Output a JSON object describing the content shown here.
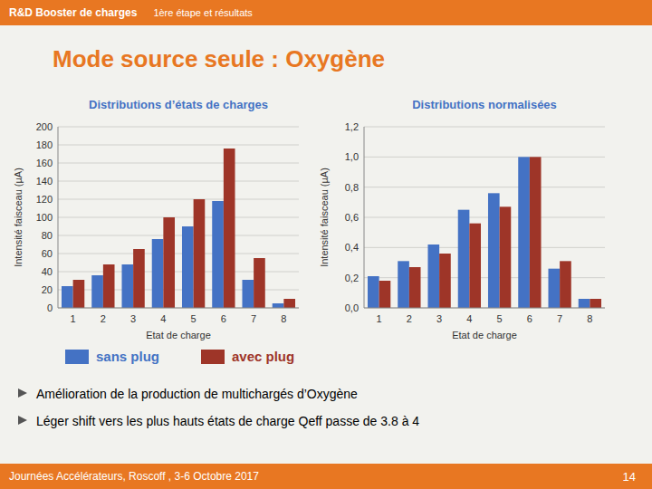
{
  "title": "Mode source seule : Oxygène",
  "header": [
    "R&D Booster de charges",
    "1ère étape et résultats"
  ],
  "footer": [
    "Journées Accélérateurs, Roscoff , 3-6 Octobre 2017",
    "14"
  ],
  "annotations": [
    "Amélioration de la production de multichargés d’Oxygène",
    "Léger shift vers les plus hauts états de charge Qeff passe de 3.8 à 4"
  ],
  "chart_data": [
    {
      "type": "bar",
      "subtitle": "Distributions d’états de charges",
      "categories": [
        1,
        2,
        3,
        4,
        5,
        6,
        7,
        8
      ],
      "series": [
        {
          "name": "sans plug",
          "color": "#4472C4",
          "values": [
            24,
            36,
            48,
            76,
            90,
            118,
            31,
            5
          ]
        },
        {
          "name": "avec plug",
          "color": "#9E3528",
          "values": [
            31,
            48,
            65,
            100,
            120,
            176,
            55,
            10
          ]
        }
      ],
      "xlabel": "Etat de charge",
      "ylabel": "Intensité faisceau (µA)",
      "ylim": [
        0,
        200
      ],
      "yticks": [
        0,
        20,
        40,
        60,
        80,
        100,
        120,
        140,
        160,
        180,
        200
      ],
      "grid": true
    },
    {
      "type": "bar",
      "subtitle": "Distributions normalisées",
      "categories": [
        1,
        2,
        3,
        4,
        5,
        6,
        7,
        8
      ],
      "series": [
        {
          "name": "sans plug",
          "color": "#4472C4",
          "values": [
            0.21,
            0.31,
            0.42,
            0.65,
            0.76,
            1.0,
            0.26,
            0.06
          ]
        },
        {
          "name": "avec plug",
          "color": "#9E3528",
          "values": [
            0.18,
            0.27,
            0.36,
            0.56,
            0.67,
            1.0,
            0.31,
            0.06
          ]
        }
      ],
      "xlabel": "Etat de charge",
      "ylabel": "Intensité faisceau (µA)",
      "ylim": [
        0,
        1.2
      ],
      "yticks": [
        {
          "value": 0,
          "label": "0,0"
        },
        {
          "value": 0.2,
          "label": "0,2"
        },
        {
          "value": 0.4,
          "label": "0,4"
        },
        {
          "value": 0.6,
          "label": "0,6"
        },
        {
          "value": 0.8,
          "label": "0,8"
        },
        {
          "value": 1.0,
          "label": "1,0"
        },
        {
          "value": 1.2,
          "label": "1,2"
        }
      ],
      "grid": true
    }
  ]
}
